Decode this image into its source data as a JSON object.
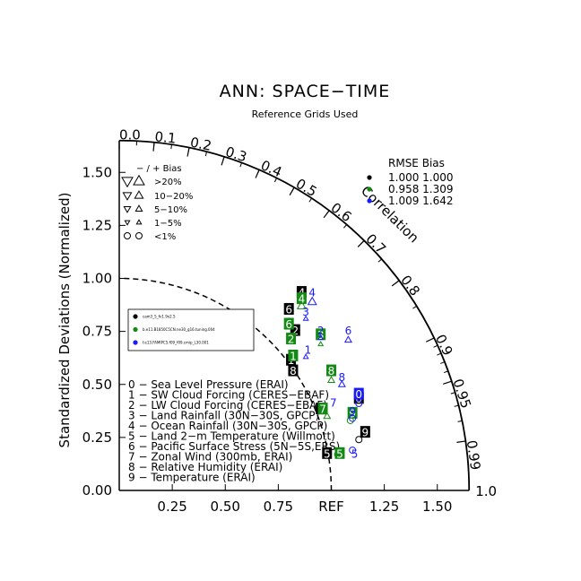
{
  "chart_data": {
    "type": "taylor",
    "title": "ANN: SPACE−TIME",
    "subtitle": "Reference Grids Used",
    "ylabel": "Standardized Deviations (Normalized)",
    "correlation_label": "Correlation",
    "ref_label": "REF",
    "xlim": [
      0,
      1.65
    ],
    "ylim": [
      0,
      1.65
    ],
    "x_ticks": [
      "0.25",
      "0.50",
      "0.75",
      "1.25",
      "1.50"
    ],
    "y_ticks": [
      "0.00",
      "0.25",
      "0.50",
      "0.75",
      "1.00",
      "1.25",
      "1.50"
    ],
    "corr_ticks": [
      "0.0",
      "0.1",
      "0.2",
      "0.3",
      "0.4",
      "0.5",
      "0.6",
      "0.7",
      "0.8",
      "0.9",
      "0.95",
      "0.99",
      "1.0"
    ],
    "bias_legend": {
      "header": "− / +      Bias",
      "rows": [
        {
          "label": ">20%",
          "sym": "tri",
          "size": 9
        },
        {
          "label": "10−20%",
          "sym": "tri",
          "size": 7
        },
        {
          "label": "5−10%",
          "sym": "tri",
          "size": 5.5
        },
        {
          "label": "1−5%",
          "sym": "tri",
          "size": 4
        },
        {
          "label": "<1%",
          "sym": "circle",
          "size": 3.5
        }
      ]
    },
    "rmse_bias": {
      "header": "RMSE  Bias",
      "rows": [
        {
          "color": "#000000",
          "rmse": "1.000",
          "bias": "1.000"
        },
        {
          "color": "#138a13",
          "rmse": "0.958",
          "bias": "1.309"
        },
        {
          "color": "#1a1aff",
          "rmse": "1.009",
          "bias": "1.642"
        }
      ]
    },
    "cases": [
      {
        "color": "#000000",
        "label": "cam3_5_fv1.9x2.5"
      },
      {
        "color": "#138a13",
        "label": "b.e11.B1850C5CN.ne30_g16.tuning.004"
      },
      {
        "color": "#1a1aff",
        "label": "f.e13.FAMIPC5.f09_f09.cmip_L30.001"
      }
    ],
    "variables": [
      "0 − Sea Level Pressure (ERAI)",
      "1 − SW Cloud Forcing (CERES−EBAF)",
      "2 − LW Cloud Forcing (CERES−EBAF)",
      "3 − Land Rainfall (30N−30S, GPCP)",
      "4 − Ocean Rainfall (30N−30S, GPCP)",
      "5 − Land 2−m Temperature (Willmott)",
      "6 − Pacific Surface Stress (5N−5S,ERS)",
      "7 − Zonal Wind (300mb, ERAI)",
      "8 − Relative Humidity (ERAI)",
      "9 − Temperature (ERAI)"
    ],
    "series": [
      {
        "name": "cam3_5_fv1.9x2.5",
        "color": "#000000",
        "boxed": true,
        "points": [
          {
            "id": "4",
            "x": 0.86,
            "y": 0.93,
            "sym": "none"
          },
          {
            "id": "6",
            "x": 0.8,
            "y": 0.85,
            "sym": "tri",
            "size": 4,
            "mx": 0.8,
            "my": 0.8
          },
          {
            "id": "2",
            "x": 0.83,
            "y": 0.75,
            "sym": "none"
          },
          {
            "id": "1",
            "x": 0.81,
            "y": 0.61,
            "sym": "none"
          },
          {
            "id": "8",
            "x": 0.82,
            "y": 0.56,
            "sym": "none"
          },
          {
            "id": "7",
            "x": 0.95,
            "y": 0.38,
            "sym": "none"
          },
          {
            "id": "9",
            "x": 1.16,
            "y": 0.27,
            "sym": "circle",
            "mx": 1.13,
            "my": 0.24
          },
          {
            "id": "5",
            "x": 0.98,
            "y": 0.17,
            "sym": "none"
          },
          {
            "id": "0",
            "x": 1.13,
            "y": 0.43,
            "sym": "none"
          }
        ]
      },
      {
        "name": "b.e11.B1850C5CN.ne30_g16.tuning.004",
        "color": "#138a13",
        "boxed": true,
        "points": [
          {
            "id": "4",
            "x": 0.86,
            "y": 0.9,
            "sym": "tri",
            "size": 7,
            "mx": 0.86,
            "my": 0.87
          },
          {
            "id": "6",
            "x": 0.8,
            "y": 0.78,
            "sym": "none"
          },
          {
            "id": "2",
            "x": 0.81,
            "y": 0.71,
            "sym": "none"
          },
          {
            "id": "3",
            "x": 0.95,
            "y": 0.73,
            "sym": "tri",
            "size": 4,
            "mx": 0.95,
            "my": 0.69
          },
          {
            "id": "1",
            "x": 0.82,
            "y": 0.63,
            "sym": "none"
          },
          {
            "id": "8",
            "x": 1.0,
            "y": 0.56,
            "sym": "tri",
            "size": 5.5,
            "mx": 1.0,
            "my": 0.52
          },
          {
            "id": "7",
            "x": 0.96,
            "y": 0.38,
            "sym": "tri",
            "size": 5.5,
            "mx": 0.98,
            "my": 0.35
          },
          {
            "id": "9",
            "x": 1.1,
            "y": 0.36,
            "sym": "circle",
            "mx": 1.09,
            "my": 0.33
          },
          {
            "id": "5",
            "x": 1.04,
            "y": 0.17,
            "sym": "circle",
            "mx": 1.03,
            "my": 0.17
          }
        ]
      },
      {
        "name": "f.e13.FAMIPC5.f09_f09.cmip_L30.001",
        "color": "#1a1aff",
        "boxed": false,
        "points": [
          {
            "id": "4",
            "x": 0.91,
            "y": 0.93,
            "sym": "tri",
            "size": 7,
            "mx": 0.91,
            "my": 0.89
          },
          {
            "id": "3",
            "x": 0.88,
            "y": 0.84,
            "sym": "tri",
            "size": 4,
            "mx": 0.88,
            "my": 0.81
          },
          {
            "id": "6",
            "x": 1.08,
            "y": 0.75,
            "sym": "tri",
            "size": 5.5,
            "mx": 1.08,
            "my": 0.71
          },
          {
            "id": "2",
            "x": 0.95,
            "y": 0.75,
            "sym": "tri",
            "size": 4,
            "mx": 0.95,
            "my": 0.72
          },
          {
            "id": "1",
            "x": 0.89,
            "y": 0.66,
            "sym": "tri",
            "size": 4,
            "mx": 0.88,
            "my": 0.63
          },
          {
            "id": "8",
            "x": 1.05,
            "y": 0.53,
            "sym": "tri",
            "size": 5.5,
            "mx": 1.05,
            "my": 0.5
          },
          {
            "id": "0",
            "x": 1.13,
            "y": 0.45,
            "sym": "circle",
            "boxed": true,
            "mx": 1.13,
            "my": 0.41
          },
          {
            "id": "9",
            "x": 1.1,
            "y": 0.37,
            "sym": "circle",
            "mx": 1.1,
            "my": 0.34
          },
          {
            "id": "7",
            "x": 1.01,
            "y": 0.41,
            "sym": "none"
          },
          {
            "id": "5",
            "x": 1.11,
            "y": 0.17,
            "sym": "circle",
            "mx": 1.1,
            "my": 0.19
          }
        ]
      }
    ]
  }
}
